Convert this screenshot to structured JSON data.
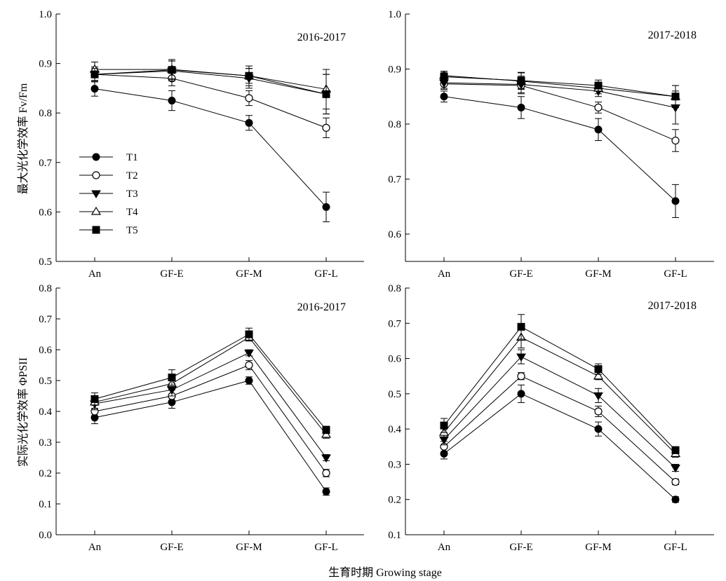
{
  "figure": {
    "shared_xlabel": "生育时期  Growing stage",
    "legend_entries": [
      "T1",
      "T2",
      "T3",
      "T4",
      "T5"
    ],
    "marker_shapes": {
      "T1": "filled-circle",
      "T2": "open-circle",
      "T3": "filled-triangle-down",
      "T4": "open-triangle-up",
      "T5": "filled-square"
    },
    "color": "#000000"
  },
  "chart_data": [
    {
      "type": "line",
      "title": "2016-2017",
      "ylabel": "最大光化学效率 Fv/Fm",
      "ylim": [
        0.5,
        1.0
      ],
      "yticks": [
        "0.5",
        "0.6",
        "0.7",
        "0.8",
        "0.9",
        "1.0"
      ],
      "categories": [
        "An",
        "GF-E",
        "GF-M",
        "GF-L"
      ],
      "legend": "left",
      "series": [
        {
          "name": "T1",
          "values": [
            0.849,
            0.825,
            0.78,
            0.61
          ],
          "errors": [
            0.015,
            0.02,
            0.015,
            0.03
          ]
        },
        {
          "name": "T2",
          "values": [
            0.878,
            0.87,
            0.83,
            0.77
          ],
          "errors": [
            0.015,
            0.015,
            0.015,
            0.02
          ]
        },
        {
          "name": "T3",
          "values": [
            0.878,
            0.885,
            0.87,
            0.838
          ],
          "errors": [
            0.015,
            0.02,
            0.02,
            0.04
          ]
        },
        {
          "name": "T4",
          "values": [
            0.888,
            0.888,
            0.875,
            0.848
          ],
          "errors": [
            0.015,
            0.02,
            0.02,
            0.04
          ]
        },
        {
          "name": "T5",
          "values": [
            0.878,
            0.887,
            0.875,
            0.838
          ],
          "errors": [
            0.012,
            0.018,
            0.015,
            0.04
          ]
        }
      ]
    },
    {
      "type": "line",
      "title": "2017-2018",
      "ylabel": "",
      "ylim": [
        0.55,
        1.0
      ],
      "yticks": [
        "0.6",
        "0.7",
        "0.8",
        "0.9",
        "1.0"
      ],
      "categories": [
        "An",
        "GF-E",
        "GF-M",
        "GF-L"
      ],
      "series": [
        {
          "name": "T1",
          "values": [
            0.85,
            0.83,
            0.79,
            0.66
          ],
          "errors": [
            0.01,
            0.02,
            0.02,
            0.03
          ]
        },
        {
          "name": "T2",
          "values": [
            0.873,
            0.87,
            0.83,
            0.77
          ],
          "errors": [
            0.01,
            0.015,
            0.01,
            0.02
          ]
        },
        {
          "name": "T3",
          "values": [
            0.875,
            0.872,
            0.86,
            0.83
          ],
          "errors": [
            0.01,
            0.015,
            0.01,
            0.03
          ]
        },
        {
          "name": "T4",
          "values": [
            0.888,
            0.878,
            0.865,
            0.85
          ],
          "errors": [
            0.008,
            0.015,
            0.01,
            0.02
          ]
        },
        {
          "name": "T5",
          "values": [
            0.886,
            0.879,
            0.87,
            0.85
          ],
          "errors": [
            0.008,
            0.015,
            0.01,
            0.02
          ]
        }
      ]
    },
    {
      "type": "line",
      "title": "2016-2017",
      "ylabel": "实际光化学效率 ΦPSII",
      "ylim": [
        0.0,
        0.8
      ],
      "yticks": [
        "0.0",
        "0.1",
        "0.2",
        "0.3",
        "0.4",
        "0.5",
        "0.6",
        "0.7",
        "0.8"
      ],
      "categories": [
        "An",
        "GF-E",
        "GF-M",
        "GF-L"
      ],
      "series": [
        {
          "name": "T1",
          "values": [
            0.38,
            0.43,
            0.5,
            0.14
          ],
          "errors": [
            0.02,
            0.02,
            0.012,
            0.012
          ]
        },
        {
          "name": "T2",
          "values": [
            0.4,
            0.45,
            0.55,
            0.2
          ],
          "errors": [
            0.02,
            0.02,
            0.015,
            0.012
          ]
        },
        {
          "name": "T3",
          "values": [
            0.425,
            0.47,
            0.59,
            0.25
          ],
          "errors": [
            0.02,
            0.02,
            0.01,
            0.01
          ]
        },
        {
          "name": "T4",
          "values": [
            0.43,
            0.49,
            0.64,
            0.325
          ],
          "errors": [
            0.02,
            0.02,
            0.012,
            0.012
          ]
        },
        {
          "name": "T5",
          "values": [
            0.44,
            0.51,
            0.65,
            0.34
          ],
          "errors": [
            0.02,
            0.025,
            0.02,
            0.012
          ]
        }
      ]
    },
    {
      "type": "line",
      "title": "2017-2018",
      "ylabel": "",
      "ylim": [
        0.1,
        0.8
      ],
      "yticks": [
        "0.1",
        "0.2",
        "0.3",
        "0.4",
        "0.5",
        "0.6",
        "0.7",
        "0.8"
      ],
      "categories": [
        "An",
        "GF-E",
        "GF-M",
        "GF-L"
      ],
      "series": [
        {
          "name": "T1",
          "values": [
            0.33,
            0.5,
            0.4,
            0.2
          ],
          "errors": [
            0.015,
            0.025,
            0.02,
            0.008
          ]
        },
        {
          "name": "T2",
          "values": [
            0.35,
            0.55,
            0.45,
            0.25
          ],
          "errors": [
            0.015,
            0.01,
            0.015,
            0.008
          ]
        },
        {
          "name": "T3",
          "values": [
            0.37,
            0.605,
            0.495,
            0.29
          ],
          "errors": [
            0.015,
            0.02,
            0.02,
            0.01
          ]
        },
        {
          "name": "T4",
          "values": [
            0.39,
            0.66,
            0.55,
            0.33
          ],
          "errors": [
            0.015,
            0.03,
            0.01,
            0.01
          ]
        },
        {
          "name": "T5",
          "values": [
            0.41,
            0.69,
            0.57,
            0.34
          ],
          "errors": [
            0.02,
            0.035,
            0.015,
            0.01
          ]
        }
      ]
    }
  ]
}
